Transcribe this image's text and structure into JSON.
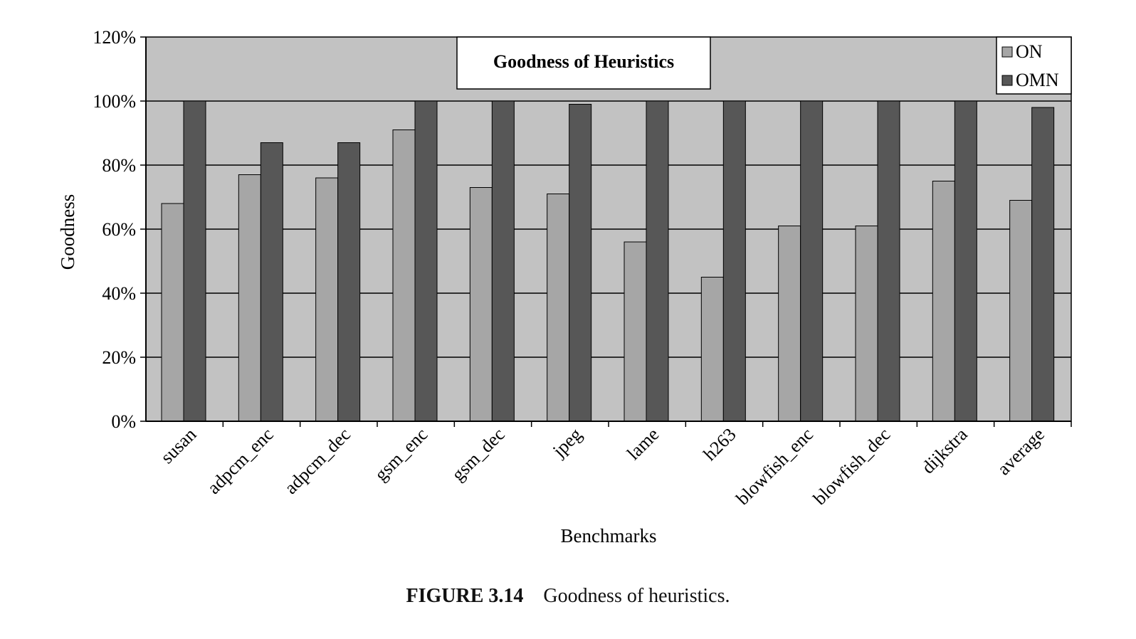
{
  "chart_data": {
    "type": "bar",
    "title": "Goodness of Heuristics",
    "xlabel": "Benchmarks",
    "ylabel": "Goodness",
    "categories": [
      "susan",
      "adpcm_enc",
      "adpcm_dec",
      "gsm_enc",
      "gsm_dec",
      "jpeg",
      "lame",
      "h263",
      "blowfish_enc",
      "blowfish_dec",
      "dijkstra",
      "average"
    ],
    "series": [
      {
        "name": "ON",
        "color": "#a6a6a6",
        "values": [
          68,
          77,
          76,
          91,
          73,
          71,
          56,
          45,
          61,
          61,
          75,
          69
        ]
      },
      {
        "name": "OMN",
        "color": "#575757",
        "values": [
          100,
          87,
          87,
          100,
          100,
          99,
          100,
          100,
          100,
          100,
          100,
          98
        ]
      }
    ],
    "ylim": [
      0,
      120
    ],
    "yticks": [
      "0%",
      "20%",
      "40%",
      "60%",
      "80%",
      "100%",
      "120%"
    ],
    "grid": true,
    "legend": "top-right",
    "plot_background": "#c2c2c2"
  },
  "caption": {
    "label": "FIGURE 3.14",
    "text": "Goodness of heuristics."
  }
}
